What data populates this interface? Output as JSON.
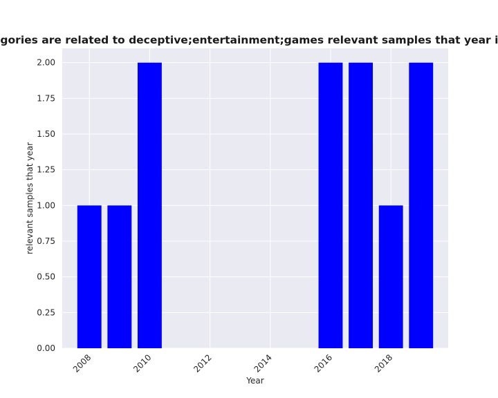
{
  "chart_data": {
    "type": "bar",
    "title": "Number of categories are related to deceptive;entertainment;games relevant samples that year in privacy policies",
    "xlabel": "Year",
    "ylabel": "relevant samples that year",
    "x": [
      2008,
      2009,
      2010,
      2016,
      2017,
      2018,
      2019
    ],
    "values": [
      1,
      1,
      2,
      2,
      2,
      1,
      2
    ],
    "x_ticks": [
      "2008",
      "2010",
      "2012",
      "2014",
      "2016",
      "2018"
    ],
    "y_ticks": [
      "0.00",
      "0.25",
      "0.50",
      "0.75",
      "1.00",
      "1.25",
      "1.50",
      "1.75",
      "2.00"
    ],
    "xlim": [
      2007.1,
      2019.9
    ],
    "ylim": [
      0,
      2.1
    ],
    "grid": true,
    "bar_color": "#0000ff",
    "background_color": "#eaeaf2",
    "grid_color": "#ffffff"
  }
}
